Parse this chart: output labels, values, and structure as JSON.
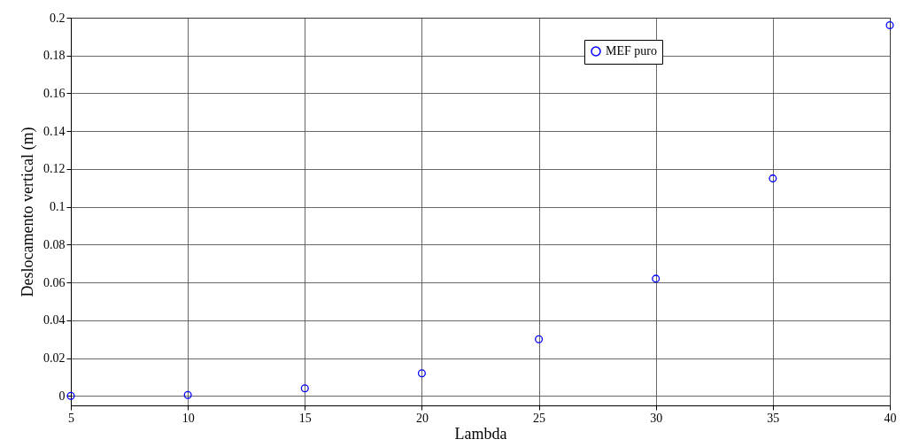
{
  "chart_data": {
    "type": "scatter",
    "xlabel": "Lambda",
    "ylabel": "Deslocamento vertical (m)",
    "x": [
      5,
      10,
      15,
      20,
      25,
      30,
      35,
      40
    ],
    "series": [
      {
        "name": "MEF puro",
        "color": "#0000ff",
        "values": [
          0,
          0.0005,
          0.004,
          0.012,
          0.03,
          0.062,
          0.115,
          0.196
        ]
      }
    ],
    "xlim": [
      5,
      40
    ],
    "xticks": [
      5,
      10,
      15,
      20,
      25,
      30,
      35,
      40
    ],
    "ylim": [
      -0.005,
      0.2
    ],
    "yticks": [
      0,
      0.02,
      0.04,
      0.06,
      0.08,
      0.1,
      0.12,
      0.14,
      0.16,
      0.18,
      0.2
    ],
    "grid": true,
    "legend": "top right",
    "marker": "circle"
  }
}
